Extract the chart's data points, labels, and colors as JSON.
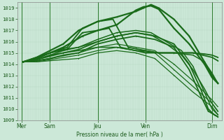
{
  "bg_color": "#cce8d8",
  "grid_minor_color": "#b8d8c4",
  "grid_major_color": "#a8c8b4",
  "line_color": "#1a6b1a",
  "ylabel_text": "Pression niveau de la mer( hPa )",
  "x_ticks_labels": [
    "Mer",
    "Sam",
    "Jeu",
    "Ven",
    "Dim"
  ],
  "x_ticks_pos": [
    0.0,
    0.75,
    2.0,
    3.25,
    5.0
  ],
  "ylim": [
    1009,
    1019.5
  ],
  "xlim": [
    -0.1,
    5.25
  ],
  "yticks": [
    1009,
    1010,
    1011,
    1012,
    1013,
    1014,
    1015,
    1016,
    1017,
    1018,
    1019
  ],
  "lines": [
    {
      "x": [
        0.05,
        0.4,
        0.75,
        1.2,
        1.6,
        2.0,
        2.3,
        2.6,
        3.0,
        3.25,
        3.6,
        4.0,
        4.5,
        4.8,
        5.0,
        5.15
      ],
      "y": [
        1014.2,
        1014.5,
        1015.0,
        1015.3,
        1016.8,
        1017.0,
        1017.2,
        1015.5,
        1015.2,
        1015.0,
        1015.0,
        1015.0,
        1015.0,
        1014.9,
        1014.8,
        1014.6
      ],
      "lw": 1.3,
      "marker": ".",
      "ms": 2.0
    },
    {
      "x": [
        0.05,
        0.4,
        0.75,
        1.2,
        1.6,
        2.0,
        2.4,
        2.8,
        3.25,
        3.6,
        4.0,
        4.5,
        5.0,
        5.15
      ],
      "y": [
        1014.2,
        1014.6,
        1015.0,
        1015.5,
        1017.2,
        1017.8,
        1018.0,
        1015.5,
        1015.2,
        1015.0,
        1015.0,
        1015.0,
        1014.6,
        1014.3
      ],
      "lw": 1.3,
      "marker": ".",
      "ms": 2.0
    },
    {
      "x": [
        0.05,
        0.4,
        0.75,
        1.1,
        1.5,
        2.0,
        2.5,
        3.0,
        3.25,
        3.6,
        4.0,
        4.5,
        4.8,
        5.0,
        5.15
      ],
      "y": [
        1014.2,
        1014.4,
        1014.8,
        1015.0,
        1015.2,
        1015.5,
        1015.5,
        1015.2,
        1015.2,
        1015.0,
        1015.0,
        1014.8,
        1014.2,
        1013.2,
        1012.3
      ],
      "lw": 1.1,
      "marker": ".",
      "ms": 1.8
    },
    {
      "x": [
        0.05,
        0.4,
        0.75,
        1.1,
        1.6,
        2.0,
        2.5,
        3.0,
        3.2,
        3.4,
        3.6,
        4.0,
        4.4,
        4.8,
        5.0,
        5.15
      ],
      "y": [
        1014.2,
        1014.5,
        1015.0,
        1015.5,
        1016.5,
        1017.0,
        1017.5,
        1018.8,
        1019.1,
        1019.2,
        1018.9,
        1017.2,
        1015.8,
        1014.0,
        1012.8,
        1012.3
      ],
      "lw": 1.6,
      "marker": ".",
      "ms": 2.5
    },
    {
      "x": [
        0.05,
        0.4,
        0.75,
        1.1,
        1.5,
        2.0,
        2.5,
        3.0,
        3.2,
        3.4,
        3.6,
        4.0,
        4.4,
        4.8,
        5.0,
        5.15
      ],
      "y": [
        1014.2,
        1014.6,
        1015.2,
        1015.8,
        1017.0,
        1017.8,
        1018.2,
        1018.7,
        1019.0,
        1019.3,
        1019.0,
        1018.0,
        1016.5,
        1014.2,
        1013.0,
        1012.3
      ],
      "lw": 1.6,
      "marker": ".",
      "ms": 2.5
    },
    {
      "x": [
        0.05,
        0.4,
        0.75,
        1.1,
        1.5,
        2.0,
        2.5,
        3.0,
        3.4,
        3.8,
        4.2,
        4.5,
        4.8,
        5.0,
        5.15
      ],
      "y": [
        1014.2,
        1014.4,
        1014.8,
        1015.2,
        1015.5,
        1016.0,
        1016.5,
        1016.8,
        1016.6,
        1015.8,
        1014.8,
        1013.5,
        1011.8,
        1010.5,
        1009.8
      ],
      "lw": 1.1,
      "marker": ".",
      "ms": 1.8
    },
    {
      "x": [
        0.05,
        0.4,
        0.75,
        1.1,
        1.5,
        2.0,
        2.5,
        3.0,
        3.4,
        3.8,
        4.2,
        4.5,
        4.8,
        5.0,
        5.15
      ],
      "y": [
        1014.2,
        1014.5,
        1015.0,
        1015.3,
        1015.5,
        1016.2,
        1016.8,
        1017.0,
        1016.8,
        1016.0,
        1015.2,
        1013.8,
        1011.5,
        1010.0,
        1009.5
      ],
      "lw": 1.1,
      "marker": ".",
      "ms": 1.8
    },
    {
      "x": [
        0.05,
        0.4,
        0.75,
        1.5,
        2.0,
        2.5,
        3.0,
        3.5,
        4.0,
        4.5,
        5.0,
        5.15
      ],
      "y": [
        1014.2,
        1014.3,
        1014.5,
        1015.0,
        1015.5,
        1015.8,
        1015.5,
        1015.2,
        1014.0,
        1012.5,
        1010.8,
        1010.2
      ],
      "lw": 0.9,
      "marker": ".",
      "ms": 1.5
    },
    {
      "x": [
        0.05,
        0.4,
        0.75,
        1.5,
        2.0,
        2.5,
        3.0,
        3.5,
        4.0,
        4.5,
        5.0,
        5.15
      ],
      "y": [
        1014.2,
        1014.2,
        1014.3,
        1014.5,
        1015.0,
        1015.2,
        1015.0,
        1014.5,
        1013.0,
        1011.5,
        1010.2,
        1009.5
      ],
      "lw": 0.9,
      "marker": ".",
      "ms": 1.5
    },
    {
      "x": [
        0.05,
        0.4,
        0.75,
        1.5,
        2.0,
        2.5,
        3.0,
        3.5,
        4.0,
        4.5,
        5.0,
        5.15
      ],
      "y": [
        1014.2,
        1014.2,
        1014.4,
        1014.8,
        1015.2,
        1015.5,
        1015.2,
        1015.0,
        1013.5,
        1012.0,
        1010.5,
        1009.8
      ],
      "lw": 0.9,
      "marker": ".",
      "ms": 1.5
    },
    {
      "x": [
        0.05,
        0.4,
        0.75,
        1.1,
        1.5,
        2.0,
        2.5,
        3.0,
        3.5,
        4.0,
        4.4,
        4.7,
        4.9,
        5.05,
        5.15
      ],
      "y": [
        1014.2,
        1014.3,
        1014.5,
        1014.8,
        1015.0,
        1015.8,
        1016.2,
        1016.5,
        1016.2,
        1015.5,
        1013.5,
        1011.2,
        1009.8,
        1009.5,
        1009.3
      ],
      "lw": 1.3,
      "marker": ".",
      "ms": 2.0
    },
    {
      "x": [
        0.05,
        0.4,
        0.75,
        1.1,
        1.5,
        2.0,
        2.5,
        3.0,
        3.5,
        4.0,
        4.4,
        4.7,
        4.9,
        5.05,
        5.15
      ],
      "y": [
        1014.2,
        1014.4,
        1014.7,
        1015.0,
        1015.3,
        1016.0,
        1016.5,
        1016.8,
        1016.5,
        1015.8,
        1014.0,
        1011.8,
        1010.0,
        1009.5,
        1009.3
      ],
      "lw": 1.3,
      "marker": ".",
      "ms": 2.0
    }
  ]
}
